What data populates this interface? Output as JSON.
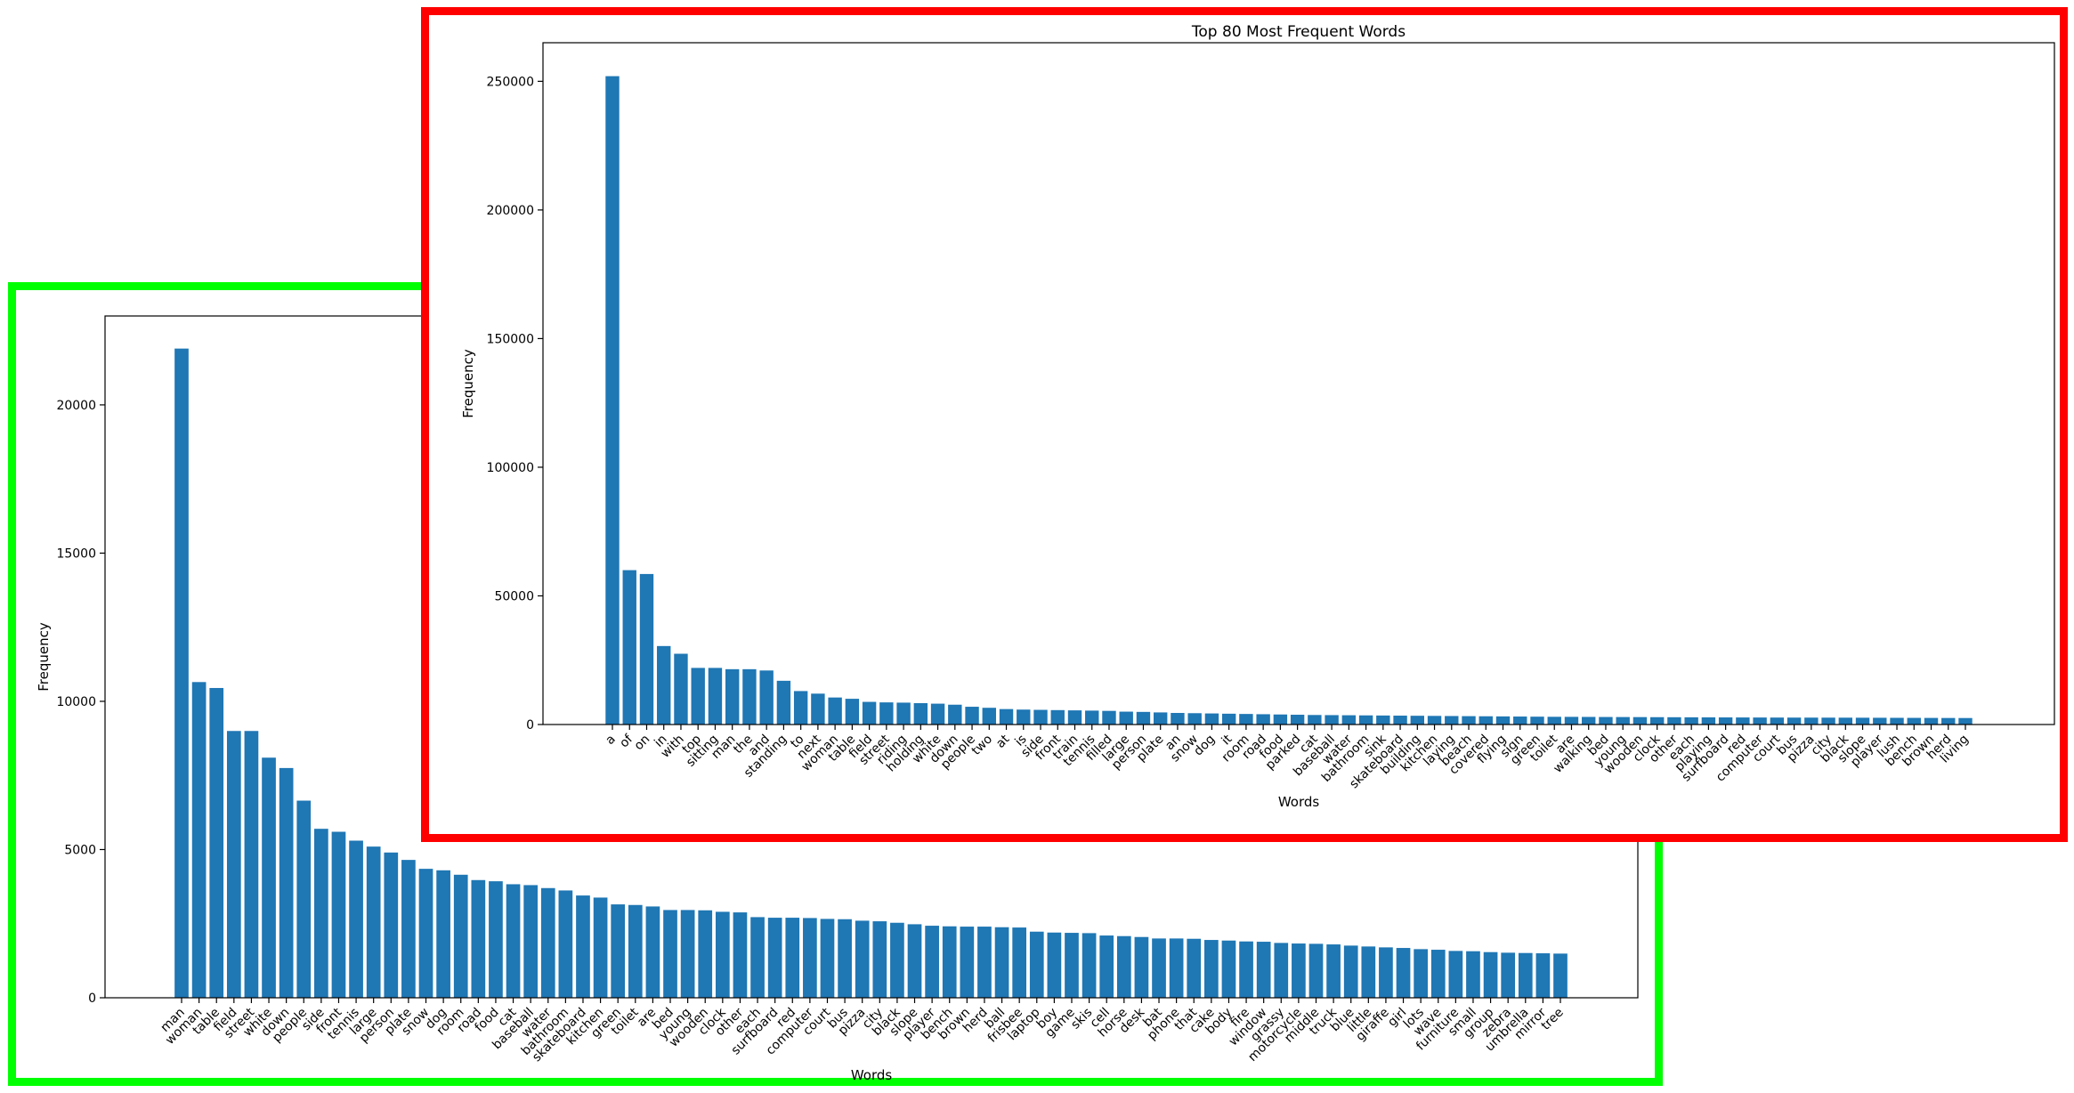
{
  "chart_data": [
    {
      "type": "bar",
      "title": "",
      "xlabel": "Words",
      "ylabel": "Frequency",
      "ylim": [
        0,
        23000
      ],
      "yticks": [
        0,
        5000,
        10000,
        15000,
        20000
      ],
      "ytick_labels": [
        "0",
        "5000",
        "10000",
        "15000",
        "20000"
      ],
      "grid": false,
      "color": "#1f77b4",
      "categories": [
        "man",
        "woman",
        "table",
        "field",
        "street",
        "white",
        "down",
        "people",
        "side",
        "front",
        "tennis",
        "large",
        "person",
        "plate",
        "snow",
        "dog",
        "room",
        "road",
        "food",
        "cat",
        "baseball",
        "water",
        "bathroom",
        "skateboard",
        "kitchen",
        "green",
        "toilet",
        "are",
        "bed",
        "young",
        "wooden",
        "clock",
        "other",
        "each",
        "surfboard",
        "red",
        "computer",
        "court",
        "bus",
        "pizza",
        "city",
        "black",
        "slope",
        "player",
        "bench",
        "brown",
        "herd",
        "ball",
        "frisbee",
        "laptop",
        "boy",
        "game",
        "skis",
        "cell",
        "horse",
        "desk",
        "bat",
        "phone",
        "that",
        "cake",
        "body",
        "fire",
        "window",
        "grassy",
        "motorcycle",
        "middle",
        "truck",
        "blue",
        "little",
        "giraffe",
        "girl",
        "lots",
        "wave",
        "furniture",
        "small",
        "group",
        "zebra",
        "umbrella",
        "mirror",
        "tree"
      ],
      "values": [
        21900,
        10650,
        10450,
        9000,
        9000,
        8100,
        7750,
        6650,
        5700,
        5600,
        5300,
        5100,
        4900,
        4650,
        4350,
        4300,
        4150,
        3970,
        3930,
        3830,
        3800,
        3700,
        3620,
        3450,
        3380,
        3150,
        3130,
        3080,
        2960,
        2960,
        2950,
        2900,
        2880,
        2720,
        2700,
        2700,
        2690,
        2660,
        2650,
        2600,
        2580,
        2530,
        2480,
        2430,
        2410,
        2400,
        2400,
        2380,
        2370,
        2230,
        2200,
        2190,
        2180,
        2100,
        2080,
        2050,
        2000,
        2000,
        1990,
        1950,
        1930,
        1900,
        1890,
        1850,
        1830,
        1820,
        1800,
        1760,
        1730,
        1700,
        1680,
        1640,
        1620,
        1580,
        1570,
        1540,
        1520,
        1510,
        1500,
        1490
      ]
    },
    {
      "type": "bar",
      "title": "Top 80 Most Frequent Words",
      "xlabel": "Words",
      "ylabel": "Frequency",
      "ylim": [
        0,
        265000
      ],
      "yticks": [
        0,
        50000,
        100000,
        150000,
        200000,
        250000
      ],
      "ytick_labels": [
        "0",
        "50000",
        "100000",
        "150000",
        "200000",
        "250000"
      ],
      "grid": false,
      "color": "#1f77b4",
      "categories": [
        "a",
        "of",
        "on",
        "in",
        "with",
        "top",
        "sitting",
        "man",
        "the",
        "and",
        "standing",
        "to",
        "next",
        "woman",
        "table",
        "field",
        "street",
        "riding",
        "holding",
        "white",
        "down",
        "people",
        "two",
        "at",
        "is",
        "side",
        "front",
        "train",
        "tennis",
        "filled",
        "large",
        "person",
        "plate",
        "an",
        "snow",
        "dog",
        "it",
        "room",
        "road",
        "food",
        "parked",
        "cat",
        "baseball",
        "water",
        "bathroom",
        "sink",
        "skateboard",
        "building",
        "kitchen",
        "laying",
        "beach",
        "covered",
        "flying",
        "sign",
        "green",
        "toilet",
        "are",
        "walking",
        "bed",
        "young",
        "wooden",
        "clock",
        "other",
        "each",
        "playing",
        "surfboard",
        "red",
        "computer",
        "court",
        "bus",
        "pizza",
        "city",
        "black",
        "slope",
        "player",
        "lush",
        "bench",
        "brown",
        "herd",
        "living"
      ],
      "values": [
        252000,
        60000,
        58500,
        30500,
        27500,
        22000,
        22000,
        21500,
        21500,
        21000,
        17000,
        13000,
        12000,
        10500,
        10000,
        8800,
        8600,
        8500,
        8300,
        8100,
        7700,
        6900,
        6500,
        6000,
        5800,
        5700,
        5600,
        5500,
        5400,
        5300,
        5000,
        4900,
        4700,
        4500,
        4400,
        4300,
        4200,
        4100,
        4000,
        3900,
        3800,
        3700,
        3650,
        3600,
        3550,
        3500,
        3450,
        3400,
        3350,
        3300,
        3250,
        3200,
        3150,
        3100,
        3050,
        3000,
        2980,
        2950,
        2920,
        2900,
        2880,
        2850,
        2830,
        2800,
        2780,
        2760,
        2740,
        2720,
        2700,
        2690,
        2680,
        2670,
        2660,
        2640,
        2620,
        2600,
        2580,
        2560,
        2540,
        2520
      ]
    }
  ]
}
